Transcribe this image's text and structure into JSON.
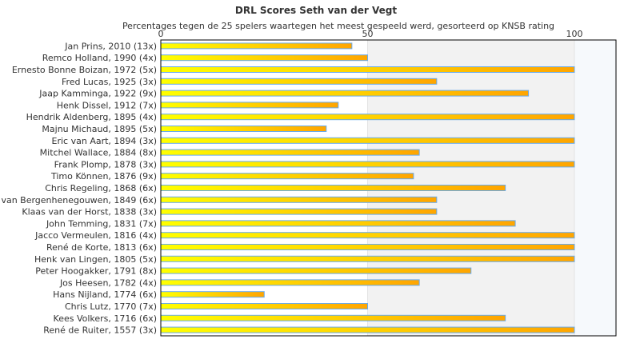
{
  "chart_data": {
    "type": "bar",
    "orientation": "horizontal",
    "title": "DRL Scores Seth van der Vegt",
    "subtitle": "Percentages tegen de 25 spelers waartegen het meest gespeeld werd, gesorteerd op KNSB rating",
    "xlim": [
      0,
      110
    ],
    "xticks": [
      0,
      50,
      100
    ],
    "xtick_labels": [
      "0",
      "50",
      "100"
    ],
    "categories": [
      "Jan Prins, 2010 (13x)",
      "Remco Holland, 1990 (4x)",
      "Ernesto Bonne Boizan, 1972 (5x)",
      "Fred Lucas, 1925 (3x)",
      "Jaap Kamminga, 1922 (9x)",
      "Henk Dissel, 1912 (7x)",
      "Hendrik Aldenberg, 1895 (4x)",
      "Majnu Michaud, 1895 (5x)",
      "Eric van Aart, 1894 (3x)",
      "Mitchel Wallace, 1884 (8x)",
      "Frank Plomp, 1878 (3x)",
      "Timo Können, 1876 (9x)",
      "Chris Regeling, 1868 (6x)",
      "van Bergenhenegouwen, 1849 (6x)",
      "Klaas van der Horst, 1838 (3x)",
      "John Temming, 1831 (7x)",
      "Jacco Vermeulen, 1816 (4x)",
      "René de Korte, 1813 (6x)",
      "Henk van Lingen, 1805 (5x)",
      "Peter Hoogakker, 1791 (8x)",
      "Jos Heesen, 1782 (4x)",
      "Hans Nijland, 1774 (6x)",
      "Chris Lutz, 1770 (7x)",
      "Kees Volkers, 1716 (6x)",
      "René de Ruiter, 1557 (3x)"
    ],
    "values": [
      46.2,
      50,
      100,
      66.7,
      88.9,
      42.9,
      100,
      40,
      100,
      62.5,
      100,
      61.1,
      83.3,
      66.7,
      66.7,
      85.7,
      100,
      100,
      100,
      75,
      62.5,
      25,
      50,
      83.3,
      100
    ],
    "colors": {
      "bar_start": "#ffff00",
      "bar_end": "#ffa500",
      "bar_border": "#66aaee"
    }
  }
}
